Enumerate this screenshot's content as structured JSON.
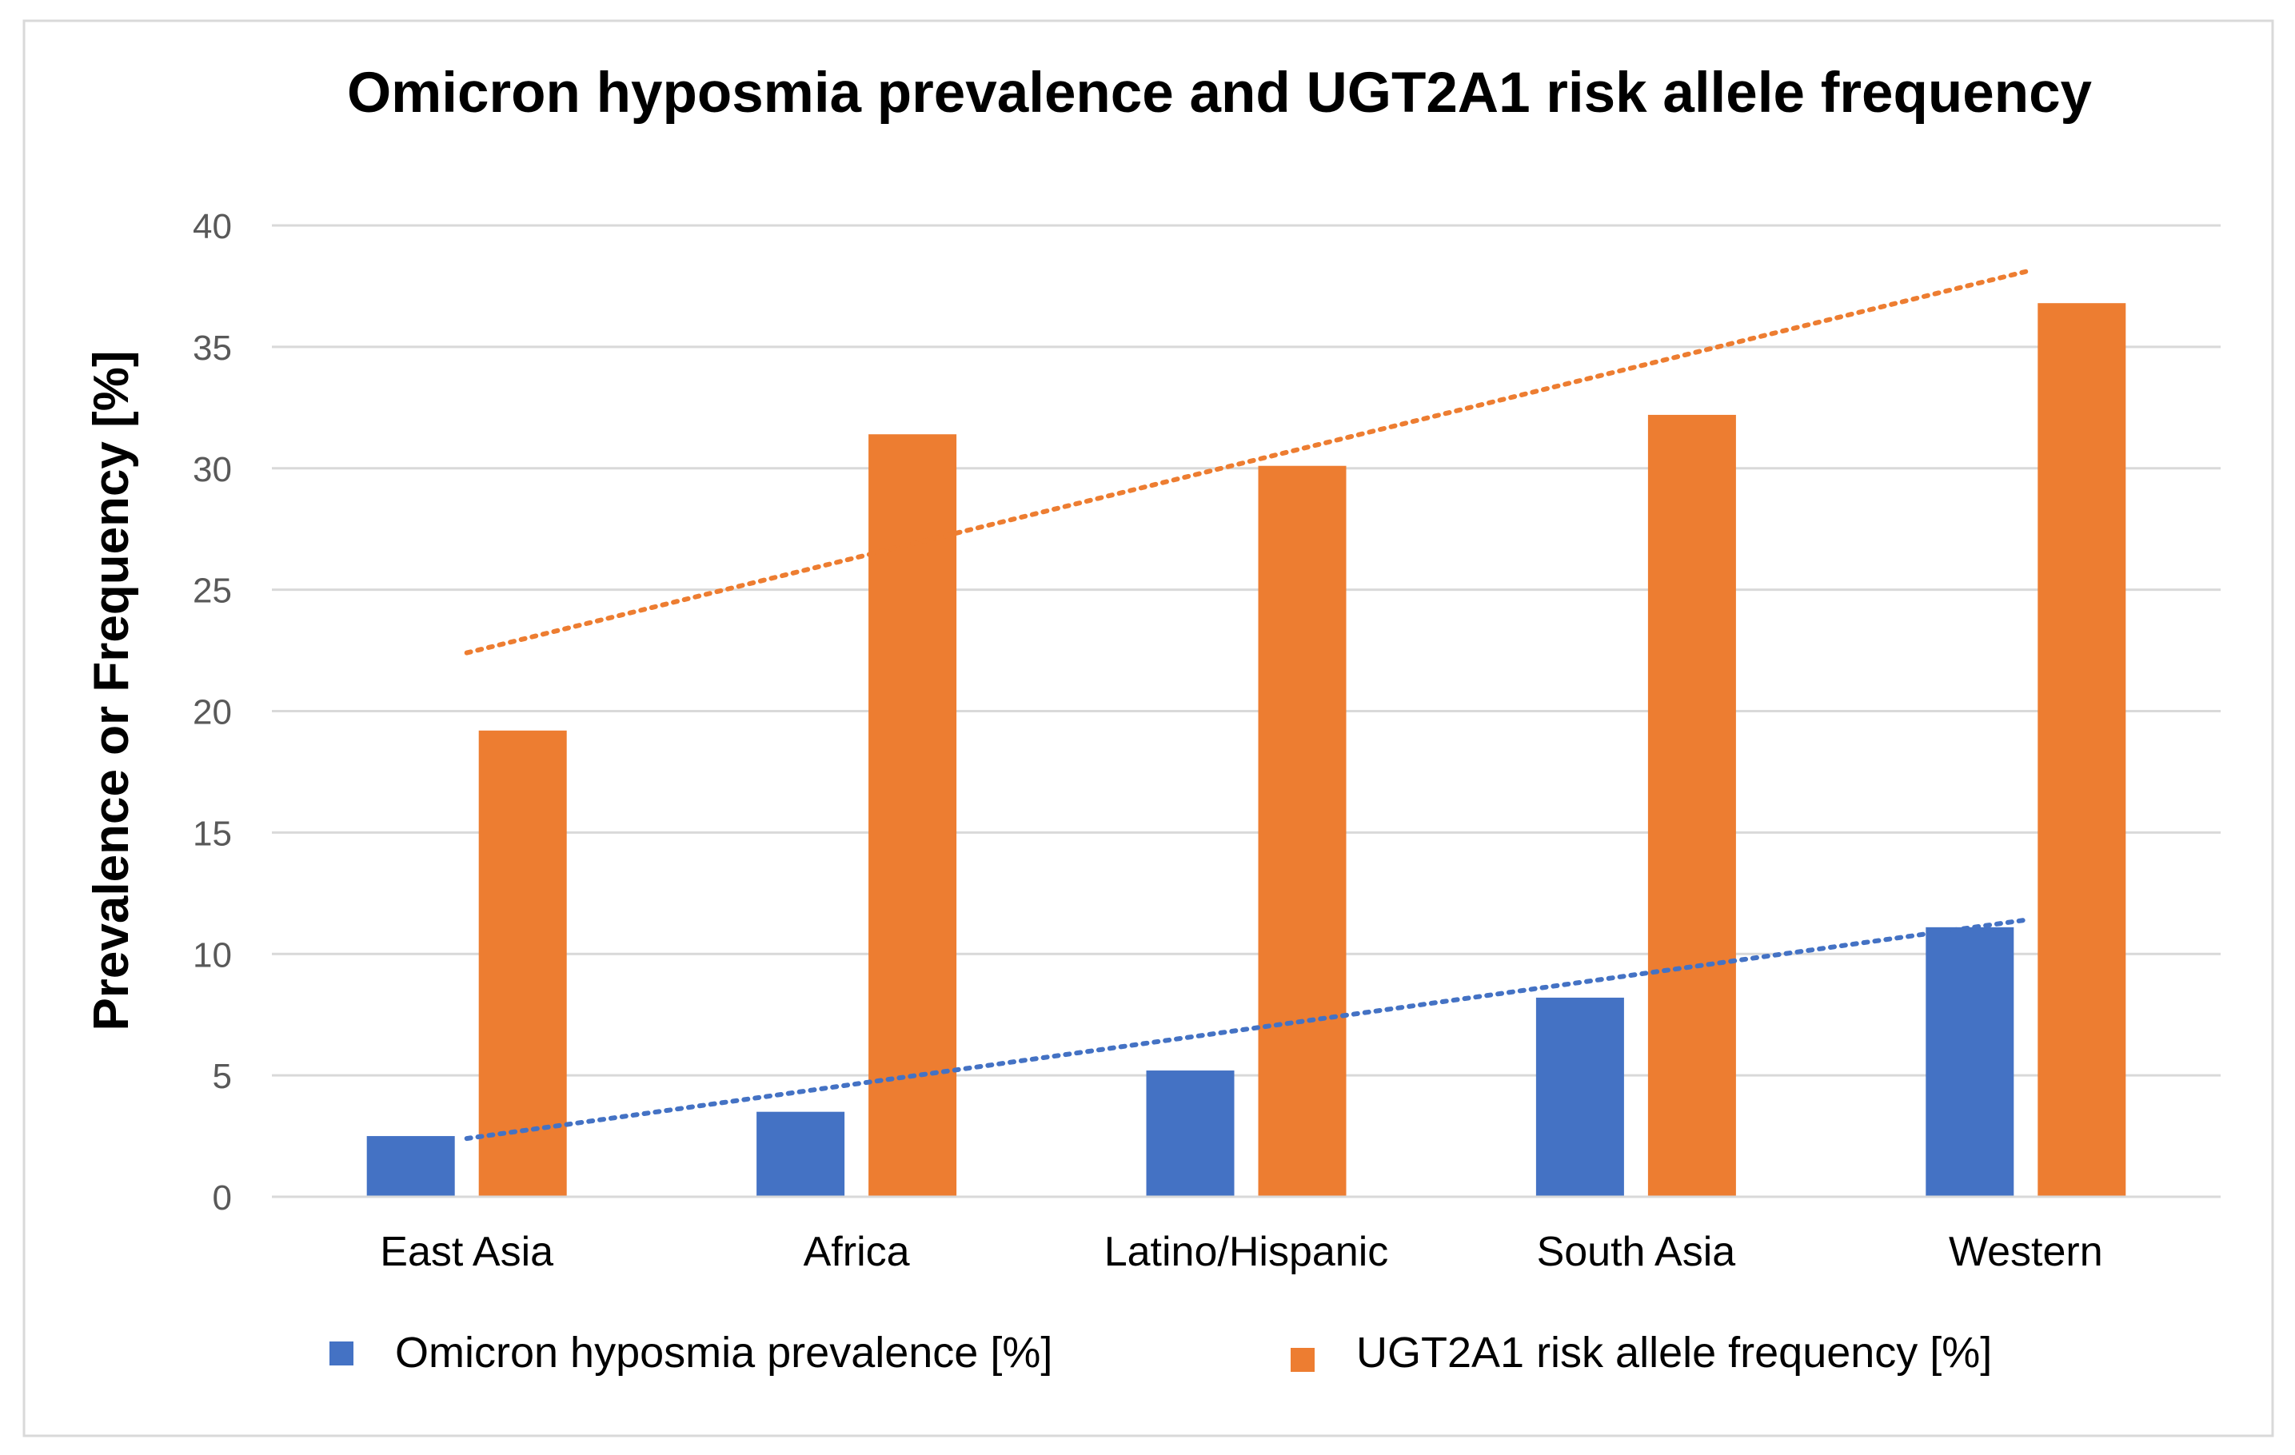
{
  "chart_data": {
    "type": "bar",
    "title": "Omicron hyposmia prevalence and UGT2A1 risk allele frequency",
    "xlabel": "",
    "ylabel": "Prevalence or Frequency [%]",
    "ylim": [
      0,
      40
    ],
    "yticks": [
      "0",
      "5",
      "10",
      "15",
      "20",
      "25",
      "30",
      "35",
      "40"
    ],
    "grid": true,
    "legend_position": "bottom",
    "categories": [
      "East Asia",
      "Africa",
      "Latino/Hispanic",
      "South Asia",
      "Western"
    ],
    "series": [
      {
        "name": "Omicron hyposmia prevalence [%]",
        "color": "#4472C4",
        "values": [
          2.5,
          3.5,
          5.2,
          8.2,
          11.1
        ],
        "trendline": {
          "style": "dotted",
          "start": 2.4,
          "end": 11.4
        }
      },
      {
        "name": "UGT2A1 risk allele frequency [%]",
        "color": "#ED7D31",
        "values": [
          19.2,
          31.4,
          30.1,
          32.2,
          36.8
        ],
        "trendline": {
          "style": "dotted",
          "start": 22.4,
          "end": 38.1
        }
      }
    ]
  }
}
